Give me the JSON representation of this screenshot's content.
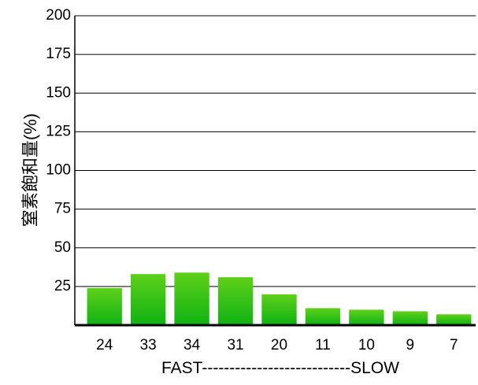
{
  "chart_data": {
    "type": "bar",
    "ylabel": "窒素飽和量(%)",
    "xlabel": "FAST---------------------------SLOW",
    "categories": [
      "24",
      "33",
      "34",
      "31",
      "20",
      "11",
      "10",
      "9",
      "7"
    ],
    "values": [
      24,
      33,
      34,
      31,
      20,
      11,
      10,
      9,
      7
    ],
    "ylim": [
      0,
      200
    ],
    "yticks": [
      25,
      50,
      75,
      100,
      125,
      150,
      175,
      200
    ],
    "grid": true,
    "legend": "none",
    "colors": {
      "bar_top": "#5fd01a",
      "bar_bottom": "#0fb214",
      "axis": "#000000",
      "grid": "#000000"
    }
  }
}
